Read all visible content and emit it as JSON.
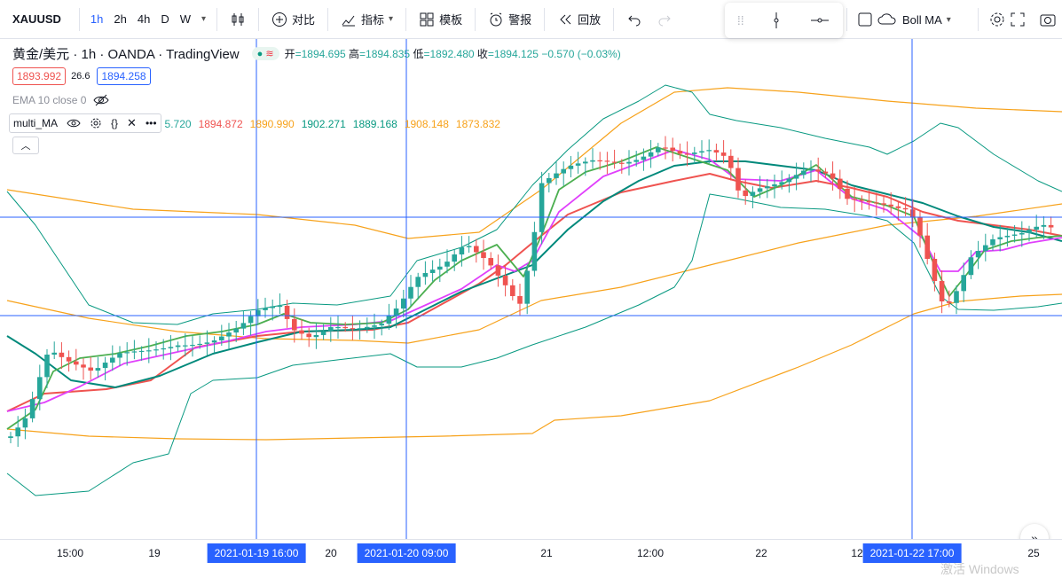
{
  "toolbar": {
    "symbol": "XAUUSD",
    "intervals": [
      "1h",
      "2h",
      "4h",
      "D",
      "W"
    ],
    "compare_label": "对比",
    "indicators_label": "指标",
    "templates_label": "模板",
    "alert_label": "警报",
    "replay_label": "回放",
    "indicator_select": "Boll MA"
  },
  "legend": {
    "title": "黄金/美元 · 1h · OANDA · TradingView",
    "ohlc": {
      "open_label": "开",
      "open": "1894.695",
      "high_label": "高",
      "high": "1894.835",
      "low_label": "低",
      "low": "1892.480",
      "close_label": "收",
      "close": "1894.125",
      "change": "−0.570 (−0.03%)"
    },
    "bid": "1893.992",
    "spread": "26.6",
    "ask": "1894.258",
    "ema_label": "EMA 10 close 0",
    "ma_name": "multi_MA",
    "ma_values": [
      {
        "v": "5.720",
        "c": "#26a69a"
      },
      {
        "v": "1894.872",
        "c": "#ef5350"
      },
      {
        "v": "1890.990",
        "c": "#f7a21b"
      },
      {
        "v": "1902.271",
        "c": "#089981"
      },
      {
        "v": "1889.168",
        "c": "#089981"
      },
      {
        "v": "1908.148",
        "c": "#f7a21b"
      },
      {
        "v": "1873.832",
        "c": "#f7a21b"
      }
    ]
  },
  "axis": {
    "ticks": [
      "15:00",
      "19",
      "20",
      "21",
      "12:00",
      "22",
      "12",
      "25"
    ],
    "tags": [
      "2021-01-19   16:00",
      "2021-01-20   09:00",
      "2021-01-22   17:00"
    ]
  },
  "watermark": "激活 Windows",
  "colors": {
    "up": "#26a69a",
    "down": "#ef5350",
    "crosshair": "#2962ff"
  },
  "chart_data": {
    "type": "candlestick",
    "series_colors": {
      "bb_upper": "#089981",
      "bb_lower": "#089981",
      "ma_fast": "#4caf50",
      "ma_mid": "#e040fb",
      "ma_slow": "#ef5350",
      "ma_long": "#00897b",
      "env": "#f7a21b"
    }
  }
}
